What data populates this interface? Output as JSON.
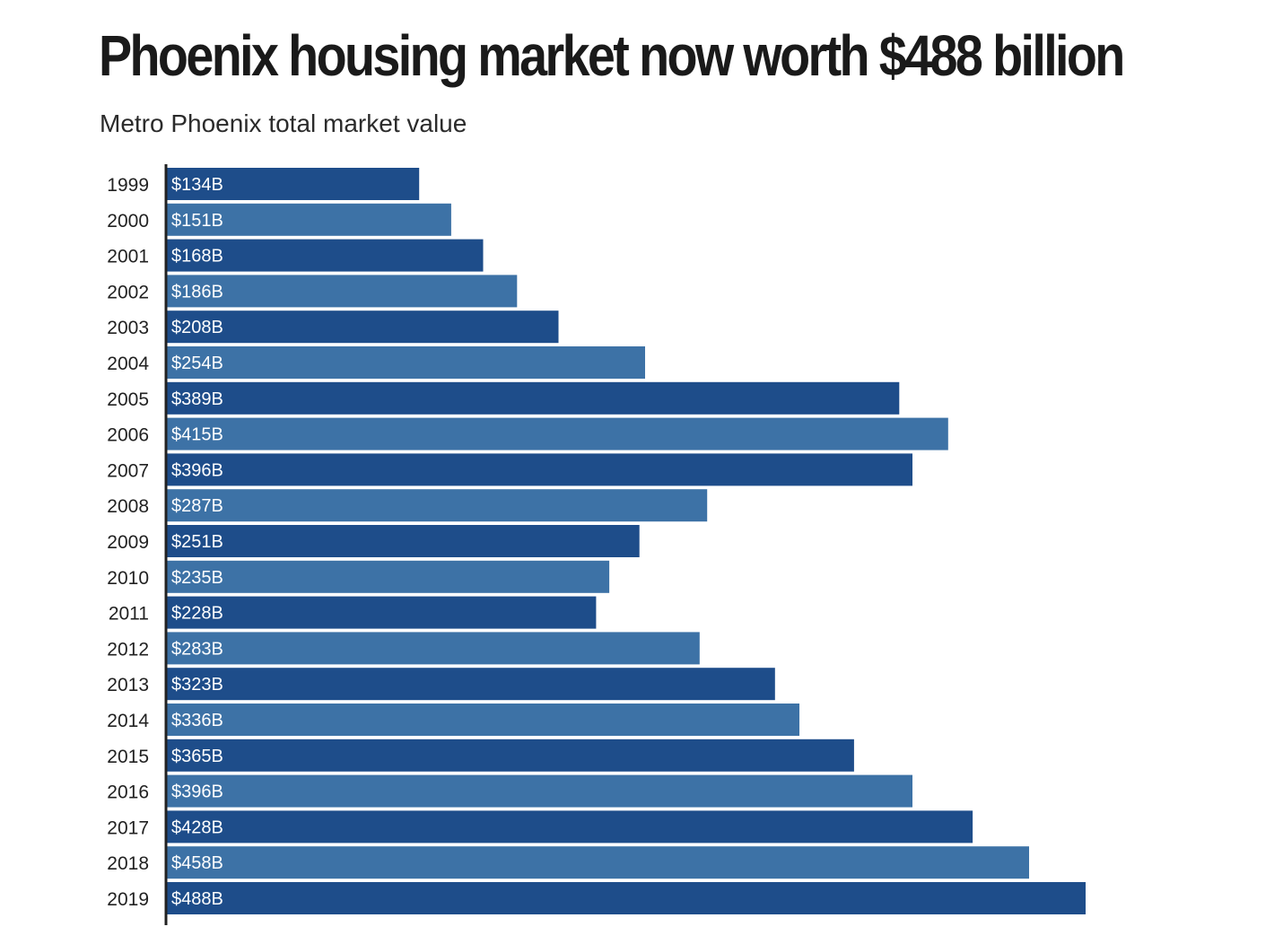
{
  "title": "Phoenix housing market now worth $488 billion",
  "subtitle": "Metro Phoenix total market value",
  "colors": {
    "bar_dark": "#1e4d8a",
    "bar_light": "#3d72a6",
    "axis": "#222222"
  },
  "chart_data": {
    "type": "bar",
    "orientation": "horizontal",
    "categories": [
      "1999",
      "2000",
      "2001",
      "2002",
      "2003",
      "2004",
      "2005",
      "2006",
      "2007",
      "2008",
      "2009",
      "2010",
      "2011",
      "2012",
      "2013",
      "2014",
      "2015",
      "2016",
      "2017",
      "2018",
      "2019"
    ],
    "values": [
      134,
      151,
      168,
      186,
      208,
      254,
      389,
      415,
      396,
      287,
      251,
      235,
      228,
      283,
      323,
      336,
      365,
      396,
      428,
      458,
      488
    ],
    "value_labels": [
      "$134B",
      "$151B",
      "$168B",
      "$186B",
      "$208B",
      "$254B",
      "$389B",
      "$415B",
      "$396B",
      "$287B",
      "$251B",
      "$235B",
      "$228B",
      "$283B",
      "$323B",
      "$336B",
      "$365B",
      "$396B",
      "$428B",
      "$458B",
      "$488B"
    ],
    "unit": "billions of dollars",
    "xlim": [
      0,
      488
    ],
    "grid": false,
    "legend": "none"
  }
}
